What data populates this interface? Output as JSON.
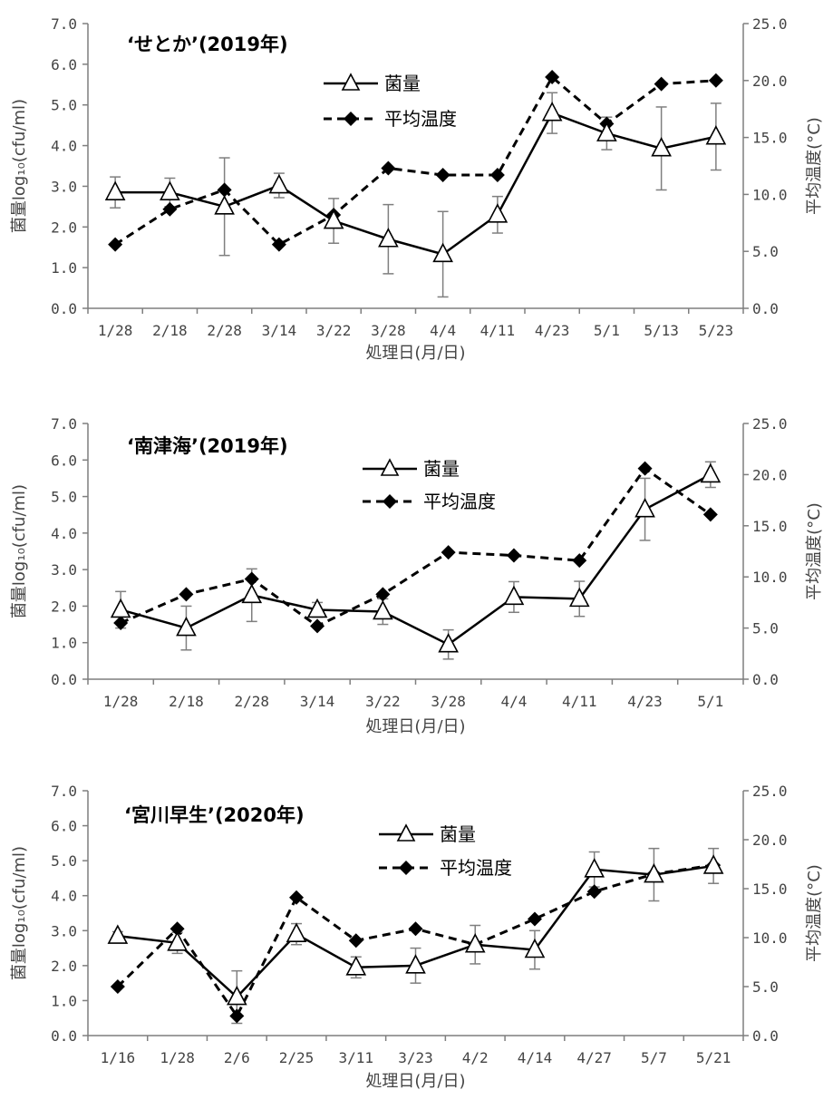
{
  "colors": {
    "axis": "#7f7f7f",
    "series": "#000000",
    "errorbar": "#7f7f7f",
    "triangle_fill": "#ffffff"
  },
  "chart_data": [
    {
      "type": "line",
      "title": "‘せとか’(2019年)",
      "xlabel": "処理日(月/日)",
      "ylabel": "菌量log₁₀(cfu/ml)",
      "y2label": "平均温度(°C)",
      "categories": [
        "1/28",
        "2/18",
        "2/28",
        "3/14",
        "3/22",
        "3/28",
        "4/4",
        "4/11",
        "4/23",
        "5/1",
        "5/13",
        "5/23"
      ],
      "ylim": [
        0,
        7
      ],
      "y_ticks": [
        "0.0",
        "1.0",
        "2.0",
        "3.0",
        "4.0",
        "5.0",
        "6.0",
        "7.0"
      ],
      "y2lim": [
        0,
        25
      ],
      "y2_ticks": [
        "0.0",
        "5.0",
        "10.0",
        "15.0",
        "20.0",
        "25.0"
      ],
      "series": [
        {
          "name": "菌量",
          "axis": "left",
          "marker": "open-triangle",
          "line": "solid",
          "values": [
            2.85,
            2.85,
            2.5,
            3.02,
            2.15,
            1.7,
            1.33,
            2.3,
            4.8,
            4.3,
            3.93,
            4.22
          ],
          "error": [
            0.38,
            0.35,
            1.2,
            0.3,
            0.55,
            0.85,
            1.05,
            0.45,
            0.5,
            0.4,
            1.02,
            0.82
          ]
        },
        {
          "name": "平均温度",
          "axis": "right",
          "marker": "filled-diamond",
          "line": "dashed",
          "values": [
            5.6,
            8.7,
            10.4,
            5.6,
            8.2,
            12.3,
            11.7,
            11.7,
            20.3,
            16.2,
            19.7,
            20.0
          ]
        }
      ],
      "legend": [
        "菌量",
        "平均温度"
      ]
    },
    {
      "type": "line",
      "title": "‘南津海’(2019年)",
      "xlabel": "処理日(月/日)",
      "ylabel": "菌量log₁₀(cfu/ml)",
      "y2label": "平均温度(°C)",
      "categories": [
        "1/28",
        "2/18",
        "2/28",
        "3/14",
        "3/22",
        "3/28",
        "4/4",
        "4/11",
        "4/23",
        "5/1"
      ],
      "ylim": [
        0,
        7
      ],
      "y_ticks": [
        "0.0",
        "1.0",
        "2.0",
        "3.0",
        "4.0",
        "5.0",
        "6.0",
        "7.0"
      ],
      "y2lim": [
        0,
        25
      ],
      "y2_ticks": [
        "0.0",
        "5.0",
        "10.0",
        "15.0",
        "20.0",
        "25.0"
      ],
      "series": [
        {
          "name": "菌量",
          "axis": "left",
          "marker": "open-triangle",
          "line": "solid",
          "values": [
            1.9,
            1.4,
            2.3,
            1.9,
            1.85,
            0.95,
            2.25,
            2.2,
            4.65,
            5.6
          ],
          "error": [
            0.5,
            0.6,
            0.72,
            0.2,
            0.35,
            0.4,
            0.42,
            0.48,
            0.85,
            0.35
          ]
        },
        {
          "name": "平均温度",
          "axis": "right",
          "marker": "filled-diamond",
          "line": "dashed",
          "values": [
            5.5,
            8.3,
            9.8,
            5.2,
            8.3,
            12.4,
            12.1,
            11.6,
            20.6,
            16.1
          ]
        }
      ],
      "legend": [
        "菌量",
        "平均温度"
      ]
    },
    {
      "type": "line",
      "title": "‘宮川早生’(2020年)",
      "xlabel": "処理日(月/日)",
      "ylabel": "菌量log₁₀(cfu/ml)",
      "y2label": "平均温度(°C)",
      "categories": [
        "1/16",
        "1/28",
        "2/6",
        "2/25",
        "3/11",
        "3/23",
        "4/2",
        "4/14",
        "4/27",
        "5/7",
        "5/21"
      ],
      "ylim": [
        0,
        7
      ],
      "y_ticks": [
        "0.0",
        "1.0",
        "2.0",
        "3.0",
        "4.0",
        "5.0",
        "6.0",
        "7.0"
      ],
      "y2lim": [
        0,
        25
      ],
      "y2_ticks": [
        "0.0",
        "5.0",
        "10.0",
        "15.0",
        "20.0",
        "25.0"
      ],
      "series": [
        {
          "name": "菌量",
          "axis": "left",
          "marker": "open-triangle",
          "line": "solid",
          "values": [
            2.85,
            2.65,
            1.1,
            2.9,
            1.95,
            2.0,
            2.6,
            2.45,
            4.75,
            4.6,
            4.85
          ],
          "error": [
            0.12,
            0.3,
            0.75,
            0.3,
            0.3,
            0.5,
            0.55,
            0.55,
            0.5,
            0.75,
            0.5
          ]
        },
        {
          "name": "平均温度",
          "axis": "right",
          "marker": "filled-diamond",
          "line": "dashed",
          "values": [
            5.0,
            10.9,
            2.0,
            14.1,
            9.7,
            10.9,
            9.3,
            11.9,
            14.7,
            16.5,
            17.4
          ]
        }
      ],
      "legend": [
        "菌量",
        "平均温度"
      ]
    }
  ]
}
